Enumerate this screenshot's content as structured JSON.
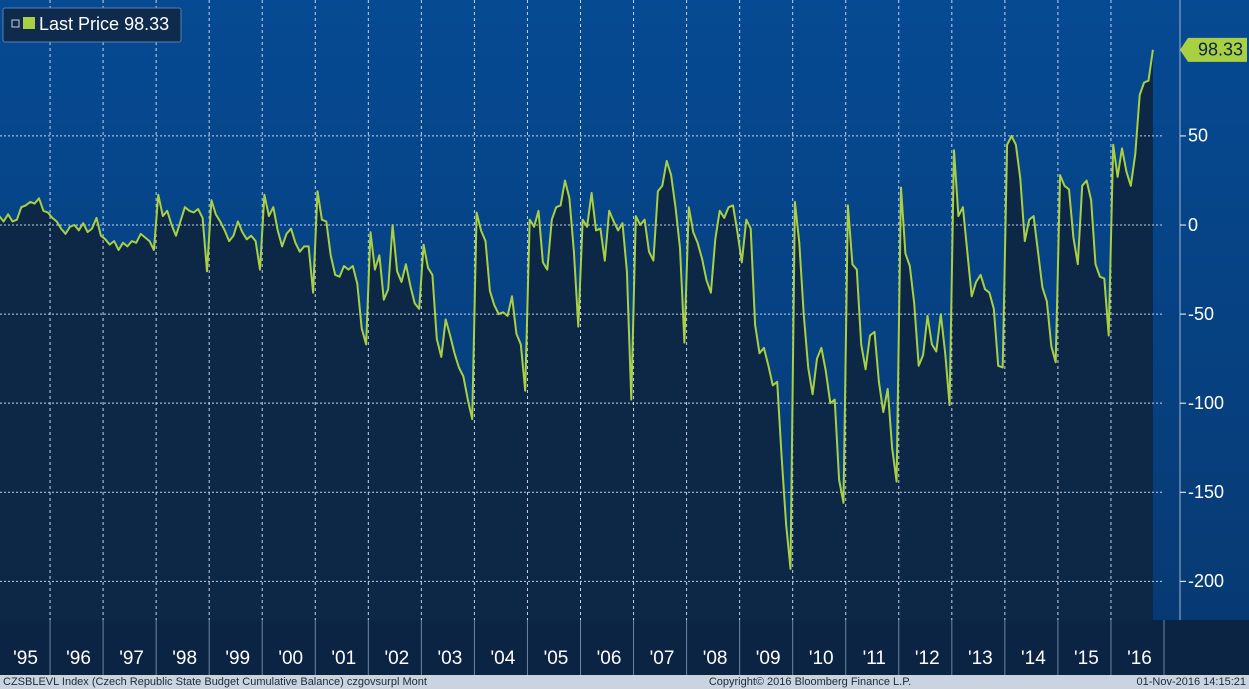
{
  "chart_data": {
    "type": "line",
    "series": [
      {
        "name": "Last Price",
        "color": "#a8d042",
        "values": [
          5,
          2,
          6,
          2,
          3,
          10,
          11,
          13,
          12,
          15,
          8,
          7,
          4,
          2,
          -2,
          -5,
          -1,
          0,
          -3,
          1,
          -4,
          -2,
          4,
          -6,
          -8,
          -11,
          -9,
          -14,
          -10,
          -12,
          -9,
          -10,
          -5,
          -7,
          -9,
          -14,
          17,
          5,
          8,
          0,
          -6,
          2,
          10,
          8,
          7,
          9,
          4,
          -26,
          14,
          6,
          2,
          -3,
          -9,
          -6,
          2,
          -4,
          -8,
          -6,
          -9,
          -25,
          17,
          5,
          10,
          -3,
          -12,
          -5,
          -2,
          -10,
          -15,
          -12,
          -12,
          -38,
          19,
          3,
          2,
          -17,
          -28,
          -29,
          -23,
          -25,
          -23,
          -33,
          -58,
          -67,
          -4,
          -25,
          -17,
          -42,
          -36,
          0,
          -26,
          -32,
          -22,
          -34,
          -44,
          -47,
          -11,
          -24,
          -28,
          -64,
          -74,
          -53,
          -62,
          -72,
          -80,
          -85,
          -98,
          -109,
          7,
          -3,
          -9,
          -37,
          -45,
          -50,
          -49,
          -51,
          -40,
          -61,
          -67,
          -93,
          3,
          -1,
          8,
          -21,
          -25,
          3,
          10,
          11,
          25,
          15,
          -15,
          -57,
          3,
          -1,
          18,
          -3,
          -2,
          -20,
          8,
          2,
          -3,
          1,
          -26,
          -98,
          5,
          0,
          3,
          -15,
          -20,
          19,
          22,
          36,
          28,
          10,
          -13,
          -66,
          10,
          -4,
          -10,
          -19,
          -31,
          -38,
          -8,
          8,
          4,
          10,
          11,
          -4,
          -21,
          3,
          -2,
          -56,
          -72,
          -69,
          -79,
          -90,
          -88,
          -130,
          -168,
          -193,
          13,
          -10,
          -50,
          -80,
          -95,
          -75,
          -69,
          -82,
          -100,
          -98,
          -143,
          -156,
          11,
          -22,
          -25,
          -67,
          -81,
          -62,
          -60,
          -88,
          -105,
          -92,
          -125,
          -144,
          21,
          -16,
          -23,
          -44,
          -79,
          -73,
          -51,
          -67,
          -71,
          -50,
          -72,
          -101,
          42,
          5,
          10,
          -15,
          -40,
          -32,
          -28,
          -36,
          -38,
          -47,
          -79,
          -80,
          45,
          50,
          45,
          26,
          -9,
          3,
          5,
          -15,
          -35,
          -43,
          -68,
          -77,
          28,
          22,
          20,
          -7,
          -22,
          22,
          25,
          14,
          -22,
          -29,
          -30,
          -62,
          45,
          27,
          43,
          30,
          22,
          40,
          73,
          80,
          81,
          98.33
        ]
      }
    ],
    "xlim": [
      0,
      264
    ],
    "xticks": [
      {
        "value": 0,
        "label": "'95"
      },
      {
        "value": 12,
        "label": "'96"
      },
      {
        "value": 24,
        "label": "'97"
      },
      {
        "value": 36,
        "label": "'98"
      },
      {
        "value": 48,
        "label": "'99"
      },
      {
        "value": 60,
        "label": "'00"
      },
      {
        "value": 72,
        "label": "'01"
      },
      {
        "value": 84,
        "label": "'02"
      },
      {
        "value": 96,
        "label": "'03"
      },
      {
        "value": 108,
        "label": "'04"
      },
      {
        "value": 120,
        "label": "'05"
      },
      {
        "value": 132,
        "label": "'06"
      },
      {
        "value": 144,
        "label": "'07"
      },
      {
        "value": 156,
        "label": "'08"
      },
      {
        "value": 168,
        "label": "'09"
      },
      {
        "value": 180,
        "label": "'10"
      },
      {
        "value": 192,
        "label": "'11"
      },
      {
        "value": 204,
        "label": "'12"
      },
      {
        "value": 216,
        "label": "'13"
      },
      {
        "value": 228,
        "label": "'14"
      },
      {
        "value": 240,
        "label": "'15"
      },
      {
        "value": 252,
        "label": "'16"
      }
    ],
    "ylim": [
      -221.7,
      126.3
    ],
    "yticks": [
      50,
      0,
      -50,
      -100,
      -150,
      -200
    ],
    "grid": true,
    "source": "CZSBLEVL Index (Czech Republic State Budget Cumulative Balance) czgovsurpl  Mont",
    "copyright": "Copyright© 2016 Bloomberg Finance L.P.",
    "timestamp": "01-Nov-2016 14:15:21"
  }
}
